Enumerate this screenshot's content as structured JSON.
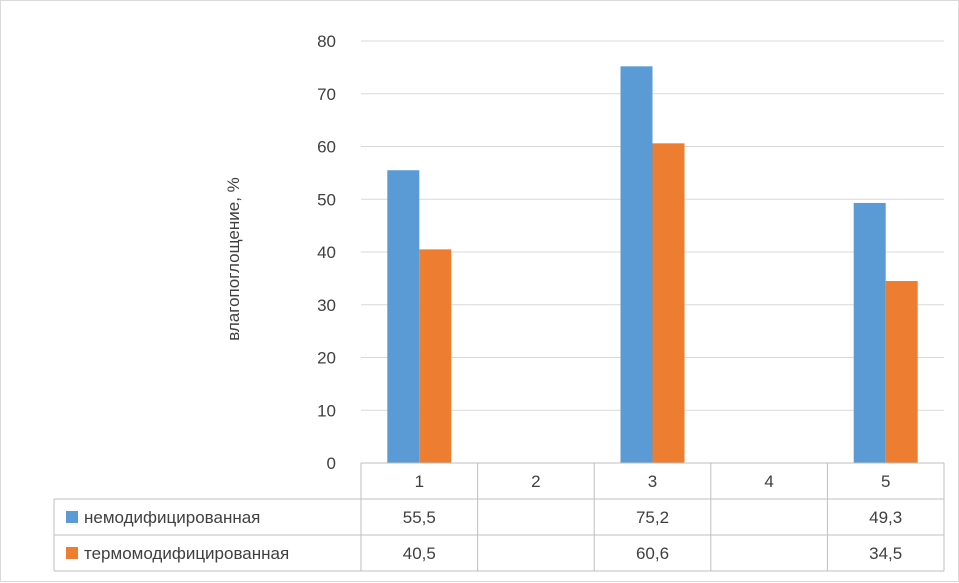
{
  "chart_data": {
    "type": "bar",
    "title": "",
    "xlabel": "",
    "ylabel": "влагопоглощение, %",
    "ylim": [
      0,
      80
    ],
    "y_ticks": [
      "0",
      "10",
      "20",
      "30",
      "40",
      "50",
      "60",
      "70",
      "80"
    ],
    "grid": true,
    "legend": "data-table",
    "categories": [
      "1",
      "2",
      "3",
      "4",
      "5"
    ],
    "series": [
      {
        "name": "немодифицированная",
        "color": "#5b9bd5",
        "values": [
          55.5,
          null,
          75.2,
          null,
          49.3
        ],
        "labels": [
          "55,5",
          "",
          "75,2",
          "",
          "49,3"
        ]
      },
      {
        "name": "термомодифицированная",
        "color": "#ed7d31",
        "values": [
          40.5,
          null,
          60.6,
          null,
          34.5
        ],
        "labels": [
          "40,5",
          "",
          "60,6",
          "",
          "34,5"
        ]
      }
    ]
  }
}
